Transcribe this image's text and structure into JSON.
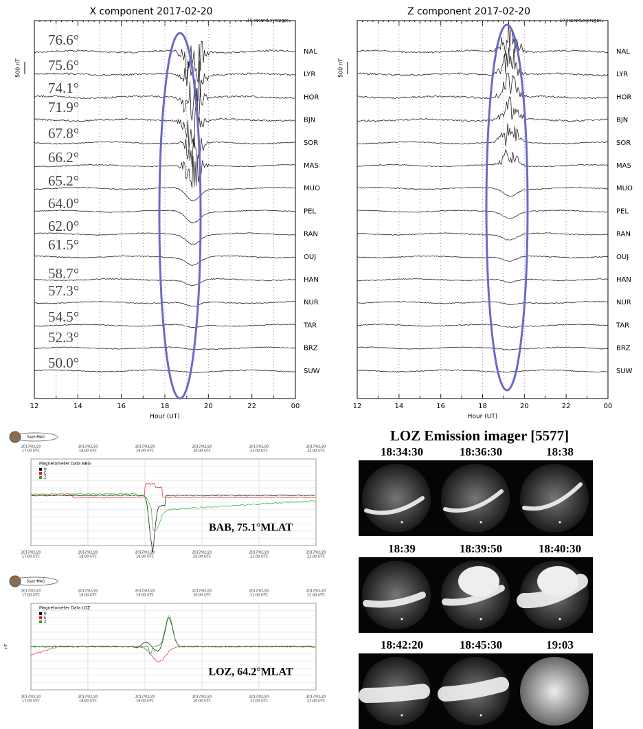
{
  "x_panel": {
    "title": "X component 2017-02-20",
    "note": "10 second averages",
    "scale": "500 nT",
    "latitudes": [
      "76.6°",
      "75.6°",
      "74.1°",
      "71.9°",
      "67.8°",
      "66.2°",
      "65.2°",
      "64.0°",
      "62.0°",
      "61.5°",
      "58.7°",
      "57.3°",
      "54.5°",
      "52.3°",
      "50.0°"
    ],
    "stations": [
      "NAL",
      "LYR",
      "HOR",
      "BJN",
      "SOR",
      "MAS",
      "MUO",
      "PEL",
      "RAN",
      "OUJ",
      "HAN",
      "NUR",
      "TAR",
      "BRZ",
      "SUW"
    ],
    "xticks": [
      "12",
      "14",
      "16",
      "18",
      "20",
      "22",
      "00"
    ],
    "xlabel": "Hour (UT)"
  },
  "z_panel": {
    "title": "Z component 2017-02-20",
    "note": "10 second averages",
    "scale": "500 nT",
    "stations": [
      "NAL",
      "LYR",
      "HOR",
      "BJN",
      "SOR",
      "MAS",
      "MUO",
      "PEL",
      "RAN",
      "OUJ",
      "HAN",
      "NUR",
      "TAR",
      "BRZ",
      "SUW"
    ],
    "xticks": [
      "12",
      "14",
      "16",
      "18",
      "20",
      "22",
      "00"
    ],
    "xlabel": "Hour (UT)"
  },
  "supermag": [
    {
      "logo": "SuperMAG",
      "date": "2017/02/20",
      "times": [
        "17:00 UTC",
        "18:00 UTC",
        "19:00 UTC",
        "20:00 UTC",
        "21:00 UTC",
        "22:00 UTC"
      ],
      "dataset": "Magnetometer Data BBG",
      "legend": [
        "N",
        "E",
        "Z"
      ],
      "label": "BAB, 75.1°MLAT"
    },
    {
      "logo": "SuperMAG",
      "date": "2017/02/20",
      "times": [
        "17:00 UTC",
        "18:00 UTC",
        "19:00 UTC",
        "20:00 UTC",
        "21:00 UTC",
        "22:00 UTC"
      ],
      "dataset": "Magnetometer Data LOZ",
      "legend": [
        "N",
        "E",
        "Z"
      ],
      "ylabel": "nT",
      "label": "LOZ, 64.2°MLAT"
    }
  ],
  "imager": {
    "title": "LOZ Emission imager [5577]",
    "times": [
      [
        "18:34:30",
        "18:36:30",
        "18:38"
      ],
      [
        "18:39",
        "18:39:50",
        "18:40:30"
      ],
      [
        "18:42:20",
        "18:45:30",
        "19:03"
      ]
    ]
  }
}
